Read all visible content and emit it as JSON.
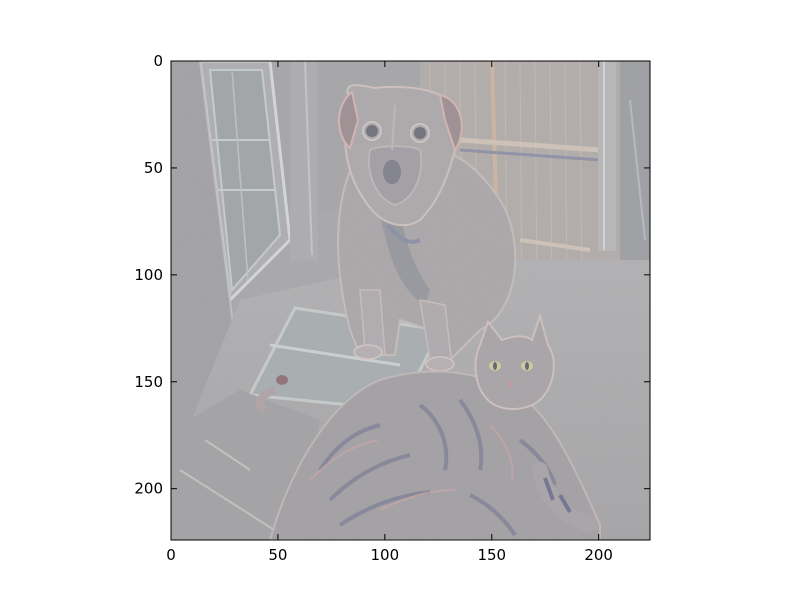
{
  "figure": {
    "background": "#ffffff"
  },
  "image_panel": {
    "description_colors": {
      "base_gray": "#a9a8a9",
      "light_gray": "#c4c4c6",
      "dark_gray": "#8f8f93",
      "blue_tint": "#8f96b4",
      "red_tint": "#c9a0a2",
      "green_tint": "#b9c7c0"
    }
  },
  "chart_data": {
    "type": "image",
    "x_ticks": [
      0,
      50,
      100,
      150,
      200
    ],
    "y_ticks": [
      0,
      50,
      100,
      150,
      200
    ],
    "xlim": [
      0,
      224
    ],
    "ylim": [
      224,
      0
    ]
  }
}
